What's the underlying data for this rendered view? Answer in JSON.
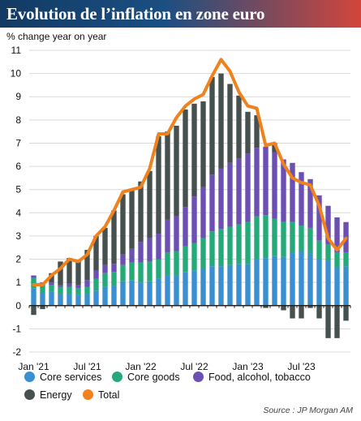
{
  "title": "Evolution de l’inflation en zone euro",
  "source": "Source : JP Morgan AM",
  "colors": {
    "core_services": "#3a8fd0",
    "core_goods": "#24a979",
    "food": "#6b4fb3",
    "energy": "#46504f",
    "total": "#f0821e"
  },
  "chart_data": {
    "type": "bar",
    "ylabel": "% change year on year",
    "ylim": [
      -2,
      11
    ],
    "yticks": [
      -2,
      -1,
      0,
      1,
      2,
      3,
      4,
      5,
      6,
      7,
      8,
      9,
      10,
      11
    ],
    "xtick_labels": [
      "Jan '21",
      "Jul '21",
      "Jan '22",
      "Jul '22",
      "Jan '23",
      "Jul '23"
    ],
    "xtick_index": [
      0,
      6,
      12,
      18,
      24,
      30
    ],
    "grid": true,
    "legend_position": "bottom",
    "categories": [
      "2021-01",
      "2021-02",
      "2021-03",
      "2021-04",
      "2021-05",
      "2021-06",
      "2021-07",
      "2021-08",
      "2021-09",
      "2021-10",
      "2021-11",
      "2021-12",
      "2022-01",
      "2022-02",
      "2022-03",
      "2022-04",
      "2022-05",
      "2022-06",
      "2022-07",
      "2022-08",
      "2022-09",
      "2022-10",
      "2022-11",
      "2022-12",
      "2023-01",
      "2023-02",
      "2023-03",
      "2023-04",
      "2023-05",
      "2023-06",
      "2023-07",
      "2023-08",
      "2023-09",
      "2023-10",
      "2023-11",
      "2023-12"
    ],
    "series": [
      {
        "name": "Core services",
        "kind": "stacked",
        "values": [
          0.75,
          0.55,
          0.6,
          0.5,
          0.5,
          0.45,
          0.5,
          0.65,
          0.8,
          0.85,
          1.05,
          1.1,
          1.0,
          1.05,
          1.15,
          1.3,
          1.3,
          1.45,
          1.5,
          1.6,
          1.7,
          1.7,
          1.75,
          1.8,
          1.8,
          2.0,
          2.05,
          2.15,
          2.1,
          2.3,
          2.35,
          2.3,
          2.0,
          1.95,
          1.65,
          1.7
        ]
      },
      {
        "name": "Core goods",
        "kind": "stacked",
        "values": [
          0.45,
          0.35,
          0.3,
          0.3,
          0.3,
          0.3,
          0.3,
          0.5,
          0.6,
          0.6,
          0.7,
          0.75,
          0.85,
          0.85,
          0.85,
          1.0,
          1.05,
          1.1,
          1.2,
          1.3,
          1.5,
          1.6,
          1.65,
          1.7,
          1.8,
          1.85,
          1.85,
          1.6,
          1.5,
          1.3,
          1.1,
          1.05,
          0.8,
          0.7,
          0.65,
          0.6
        ]
      },
      {
        "name": "Food, alcohol, tobacco",
        "kind": "stacked",
        "values": [
          0.1,
          0.1,
          0.1,
          0.1,
          0.15,
          0.15,
          0.3,
          0.35,
          0.35,
          0.35,
          0.45,
          0.6,
          0.9,
          1.0,
          1.1,
          1.4,
          1.5,
          1.7,
          2.0,
          2.2,
          2.45,
          2.6,
          2.75,
          2.85,
          2.95,
          2.95,
          2.95,
          2.85,
          2.7,
          2.55,
          2.3,
          2.1,
          1.95,
          1.65,
          1.5,
          1.3
        ]
      },
      {
        "name": "Energy",
        "kind": "stacked",
        "values": [
          -0.4,
          -0.15,
          0.4,
          1.0,
          1.1,
          1.0,
          1.3,
          1.5,
          1.6,
          2.3,
          2.6,
          2.5,
          2.6,
          2.9,
          4.2,
          3.8,
          3.9,
          4.2,
          4.0,
          3.7,
          4.2,
          4.1,
          3.4,
          2.7,
          1.8,
          1.4,
          -0.1,
          0.4,
          -0.2,
          -0.55,
          -0.55,
          -0.1,
          -0.55,
          -1.4,
          -1.4,
          -0.65
        ]
      },
      {
        "name": "Total",
        "kind": "line",
        "values": [
          0.9,
          0.9,
          1.3,
          1.6,
          2.0,
          1.9,
          2.2,
          3.0,
          3.4,
          4.1,
          4.9,
          5.0,
          5.1,
          5.9,
          7.4,
          7.4,
          8.1,
          8.6,
          8.9,
          9.1,
          9.9,
          10.6,
          10.1,
          9.2,
          8.6,
          8.5,
          6.9,
          7.0,
          6.1,
          5.5,
          5.3,
          5.2,
          4.3,
          2.9,
          2.4,
          2.9
        ]
      }
    ]
  }
}
